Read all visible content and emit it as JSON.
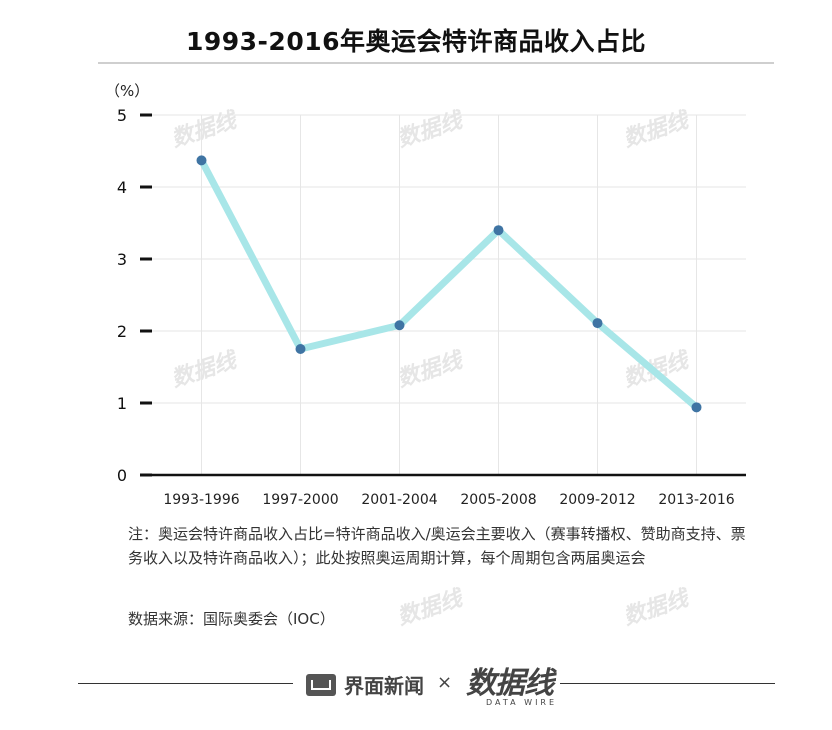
{
  "title": "1993-2016年奥运会特许商品收入占比",
  "note": "注：奥运会特许商品收入占比=特许商品收入/奥运会主要收入（赛事转播权、赞助商支持、票务收入以及特许商品收入）；此处按照奥运周期计算，每个周期包含两届奥运会",
  "source": "数据来源：国际奥委会（IOC）",
  "footer": {
    "brand_left": "界面新闻",
    "separator": "×",
    "brand_right": "数据线",
    "brand_right_sub": "DATA WIRE"
  },
  "watermark_text": "数据线",
  "colors": {
    "line": "#a8e6e8",
    "marker": "#3f74a3",
    "axis": "#111111",
    "grid": "#e6e6e6"
  },
  "chart_data": {
    "type": "line",
    "title": "1993-2016年奥运会特许商品收入占比",
    "ylabel": "（%）",
    "xlabel": "",
    "categories": [
      "1993-1996",
      "1997-2000",
      "2001-2004",
      "2005-2008",
      "2009-2012",
      "2013-2016"
    ],
    "series": [
      {
        "name": "",
        "values": [
          4.37,
          1.75,
          2.08,
          3.4,
          2.11,
          0.94
        ]
      }
    ],
    "ylim": [
      0,
      5
    ],
    "yticks": [
      0,
      1,
      2,
      3,
      4,
      5
    ],
    "grid": true,
    "legend": "none"
  }
}
